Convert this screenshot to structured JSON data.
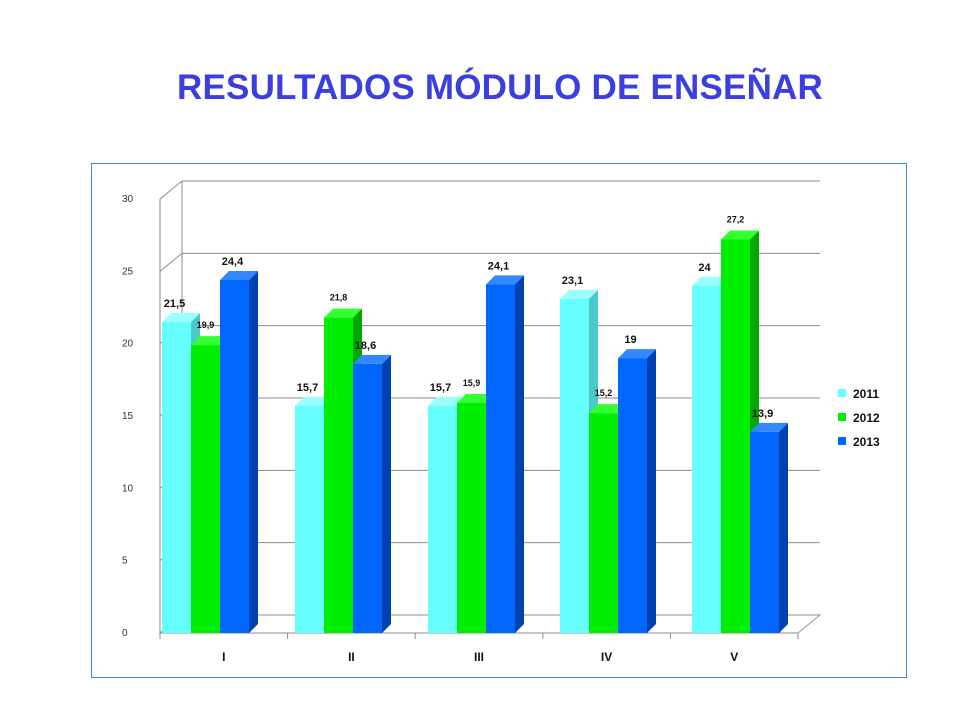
{
  "title": "RESULTADOS MÓDULO DE ENSEÑAR",
  "chart_data": {
    "type": "bar",
    "categories": [
      "I",
      "II",
      "III",
      "IV",
      "V"
    ],
    "series": [
      {
        "name": "2011",
        "values": [
          21.5,
          15.7,
          15.7,
          23.1,
          24
        ],
        "labels": [
          "21,5",
          "15,7",
          "15,7",
          "23,1",
          "24"
        ],
        "color": "#66ffff",
        "side": "#4bc8c8",
        "top": "#9affff"
      },
      {
        "name": "2012",
        "values": [
          19.9,
          21.8,
          15.9,
          15.2,
          27.2
        ],
        "labels": [
          "19,9",
          "21,8",
          "15,9",
          "15,2",
          "27,2"
        ],
        "color": "#00ee00",
        "side": "#00a800",
        "top": "#33ff33"
      },
      {
        "name": "2013",
        "values": [
          24.4,
          18.6,
          24.1,
          19,
          13.9
        ],
        "labels": [
          "24,4",
          "18,6",
          "24,1",
          "19",
          "13,9"
        ],
        "color": "#0066ff",
        "side": "#0040b0",
        "top": "#3388ff"
      }
    ],
    "yticks": [
      "0",
      "5",
      "10",
      "15",
      "20",
      "25",
      "30"
    ],
    "ylim": [
      0,
      30
    ],
    "grid": true,
    "legend": "right",
    "three_d": true
  }
}
